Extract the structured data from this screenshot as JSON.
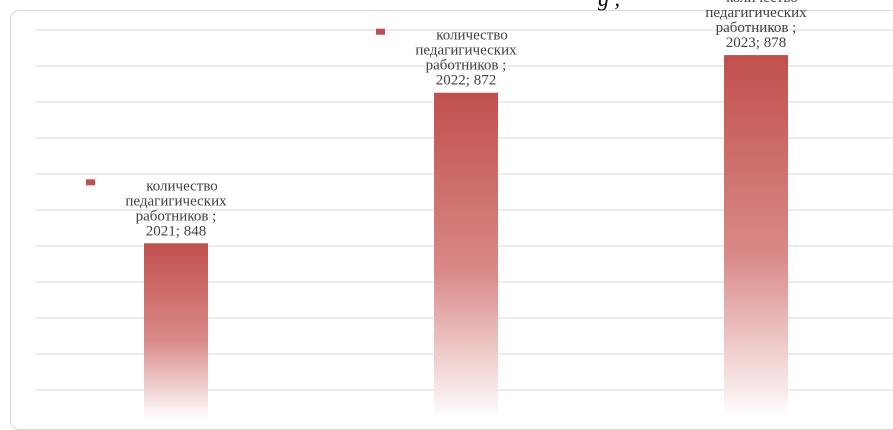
{
  "chart_data": {
    "type": "bar",
    "categories": [
      "2021",
      "2022",
      "2023"
    ],
    "series": [
      {
        "name": "количество педагигических работников",
        "values": [
          848,
          872,
          878
        ]
      }
    ],
    "ylim": [
      820,
      882
    ],
    "grid": true,
    "colors": {
      "bar_top": "#c0504d",
      "bar_bottom": "#ffffff",
      "marker": "#c0504d",
      "grid": "#d9d9d9",
      "label_text": "#404040"
    },
    "data_labels": [
      {
        "marker": "■",
        "lines": [
          "количество",
          "педагигических",
          "работников ;",
          "2021; 848"
        ]
      },
      {
        "marker": "■",
        "lines": [
          "количество",
          "педагигических",
          "работников ;",
          "2022; 872"
        ]
      },
      {
        "marker": "■",
        "lines": [
          "количество",
          "педагигических",
          "работников ;",
          "2023; 878"
        ]
      }
    ]
  }
}
